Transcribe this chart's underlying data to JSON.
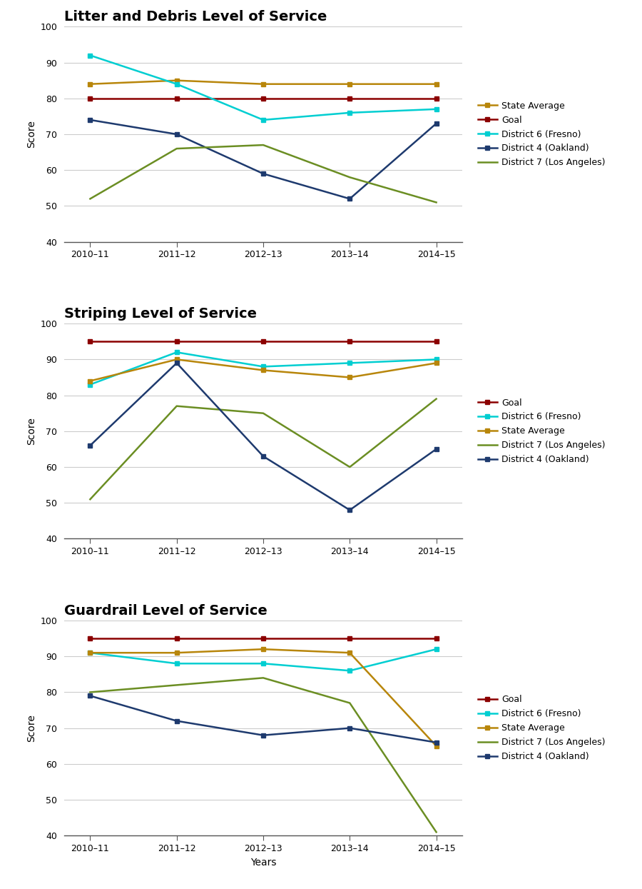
{
  "years": [
    "2010–11",
    "2011–12",
    "2012–13",
    "2013–14",
    "2014–15"
  ],
  "charts": [
    {
      "title": "Litter and Debris Level of Service",
      "ylim": [
        40,
        100
      ],
      "yticks": [
        40,
        50,
        60,
        70,
        80,
        90,
        100
      ],
      "series": [
        {
          "label": "State Average",
          "color": "#b8860b",
          "values": [
            84,
            85,
            84,
            84,
            84
          ],
          "marker": "s"
        },
        {
          "label": "Goal",
          "color": "#8b0000",
          "values": [
            80,
            80,
            80,
            80,
            80
          ],
          "marker": "s"
        },
        {
          "label": "District 6 (Fresno)",
          "color": "#00ced1",
          "values": [
            92,
            84,
            74,
            76,
            77
          ],
          "marker": "s"
        },
        {
          "label": "District 4 (Oakland)",
          "color": "#1e3a6e",
          "values": [
            74,
            70,
            59,
            52,
            73
          ],
          "marker": "s"
        },
        {
          "label": "District 7 (Los Angeles)",
          "color": "#6b8e23",
          "values": [
            52,
            66,
            67,
            58,
            51
          ],
          "marker": null
        }
      ]
    },
    {
      "title": "Striping Level of Service",
      "ylim": [
        40,
        100
      ],
      "yticks": [
        40,
        50,
        60,
        70,
        80,
        90,
        100
      ],
      "series": [
        {
          "label": "Goal",
          "color": "#8b0000",
          "values": [
            95,
            95,
            95,
            95,
            95
          ],
          "marker": "s"
        },
        {
          "label": "District 6 (Fresno)",
          "color": "#00ced1",
          "values": [
            83,
            92,
            88,
            89,
            90
          ],
          "marker": "s"
        },
        {
          "label": "State Average",
          "color": "#b8860b",
          "values": [
            84,
            90,
            87,
            85,
            89
          ],
          "marker": "s"
        },
        {
          "label": "District 7 (Los Angeles)",
          "color": "#6b8e23",
          "values": [
            51,
            77,
            75,
            60,
            79
          ],
          "marker": null
        },
        {
          "label": "District 4 (Oakland)",
          "color": "#1e3a6e",
          "values": [
            66,
            89,
            63,
            48,
            65
          ],
          "marker": "s"
        }
      ]
    },
    {
      "title": "Guardrail Level of Service",
      "ylim": [
        40,
        100
      ],
      "yticks": [
        40,
        50,
        60,
        70,
        80,
        90,
        100
      ],
      "series": [
        {
          "label": "Goal",
          "color": "#8b0000",
          "values": [
            95,
            95,
            95,
            95,
            95
          ],
          "marker": "s"
        },
        {
          "label": "District 6 (Fresno)",
          "color": "#00ced1",
          "values": [
            91,
            88,
            88,
            86,
            92
          ],
          "marker": "s"
        },
        {
          "label": "State Average",
          "color": "#b8860b",
          "values": [
            91,
            91,
            92,
            91,
            65
          ],
          "marker": "s"
        },
        {
          "label": "District 7 (Los Angeles)",
          "color": "#6b8e23",
          "values": [
            80,
            82,
            84,
            77,
            41
          ],
          "marker": null
        },
        {
          "label": "District 4 (Oakland)",
          "color": "#1e3a6e",
          "values": [
            79,
            72,
            68,
            70,
            66
          ],
          "marker": "s"
        }
      ]
    }
  ],
  "xlabel": "Years",
  "ylabel": "Score",
  "background_color": "#ffffff",
  "grid_color": "#cccccc",
  "title_fontsize": 14,
  "label_fontsize": 10,
  "tick_fontsize": 9,
  "legend_fontsize": 9,
  "linewidth": 1.8,
  "markersize": 5
}
